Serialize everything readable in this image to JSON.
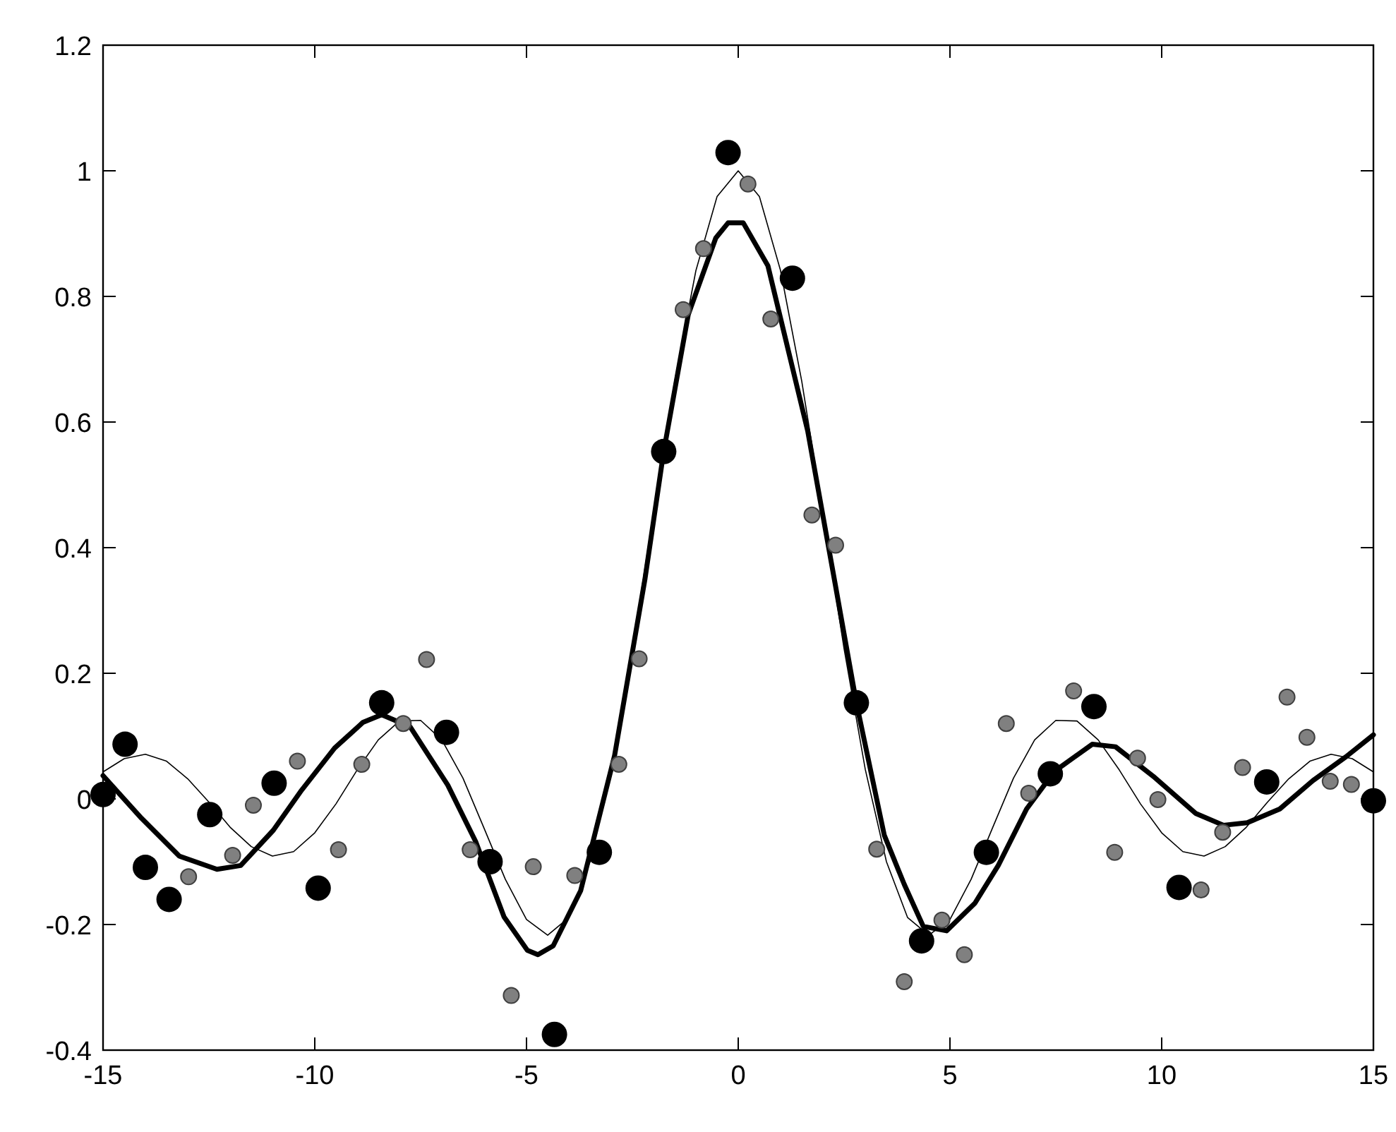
{
  "chart_data": {
    "type": "scatter",
    "xlim": [
      -15,
      15
    ],
    "ylim": [
      -0.4,
      1.2
    ],
    "xticks": [
      -15,
      -10,
      -5,
      0,
      5,
      10,
      15
    ],
    "yticks": [
      -0.4,
      -0.2,
      0,
      0.2,
      0.4,
      0.6,
      0.8,
      1,
      1.2
    ],
    "grid": false,
    "series": [
      {
        "type": "line",
        "color": "#000000",
        "marker": "none",
        "line_style": "solid",
        "x": [
          -15,
          -14.5,
          -14,
          -13.5,
          -13,
          -12.5,
          -12,
          -11.5,
          -11,
          -10.5,
          -10,
          -9.5,
          -9,
          -8.5,
          -8,
          -7.5,
          -7,
          -6.5,
          -6,
          -5.5,
          -5,
          -4.5,
          -4,
          -3.5,
          -3,
          -2.5,
          -2,
          -1.5,
          -1,
          -0.5,
          0,
          0.5,
          1,
          1.5,
          2,
          2.5,
          3,
          3.5,
          4,
          4.5,
          5,
          5.5,
          6,
          6.5,
          7,
          7.5,
          8,
          8.5,
          9,
          9.5,
          10,
          10.5,
          11,
          11.5,
          12,
          12.5,
          13,
          13.5,
          14,
          14.5,
          15
        ],
        "values": [
          0.043,
          0.064,
          0.071,
          0.06,
          0.032,
          -0.005,
          -0.045,
          -0.076,
          -0.091,
          -0.084,
          -0.054,
          -0.008,
          0.046,
          0.094,
          0.124,
          0.125,
          0.094,
          0.033,
          -0.047,
          -0.128,
          -0.192,
          -0.217,
          -0.189,
          -0.1,
          0.047,
          0.239,
          0.455,
          0.665,
          0.841,
          0.959,
          1,
          0.959,
          0.841,
          0.665,
          0.455,
          0.239,
          0.047,
          -0.1,
          -0.189,
          -0.217,
          -0.192,
          -0.128,
          -0.047,
          0.033,
          0.094,
          0.125,
          0.124,
          0.094,
          0.046,
          -0.008,
          -0.054,
          -0.084,
          -0.091,
          -0.076,
          -0.045,
          -0.005,
          0.032,
          0.06,
          0.071,
          0.064,
          0.043
        ]
      },
      {
        "type": "line",
        "color": "#000000",
        "marker": "none",
        "line_style": "solid",
        "x": [
          -15,
          -14.09,
          -13.2,
          -12.31,
          -11.75,
          -10.98,
          -10.31,
          -9.53,
          -8.86,
          -8.42,
          -7.75,
          -6.86,
          -6.2,
          -5.53,
          -4.98,
          -4.73,
          -4.37,
          -3.72,
          -2.92,
          -2.2,
          -1.76,
          -1.18,
          -0.53,
          -0.24,
          0.12,
          0.7,
          1.64,
          2.29,
          2.79,
          3.45,
          3.92,
          4.37,
          4.92,
          5.59,
          6.14,
          6.81,
          7.47,
          8.36,
          8.91,
          9.8,
          10.8,
          11.46,
          12.02,
          12.79,
          13.57,
          14.35,
          15
        ],
        "values": [
          0.037,
          -0.031,
          -0.091,
          -0.112,
          -0.106,
          -0.05,
          0.014,
          0.081,
          0.122,
          0.134,
          0.115,
          0.022,
          -0.068,
          -0.188,
          -0.241,
          -0.248,
          -0.234,
          -0.146,
          0.069,
          0.351,
          0.553,
          0.771,
          0.893,
          0.917,
          0.917,
          0.849,
          0.586,
          0.342,
          0.153,
          -0.058,
          -0.136,
          -0.203,
          -0.21,
          -0.166,
          -0.106,
          -0.016,
          0.044,
          0.087,
          0.083,
          0.036,
          -0.023,
          -0.042,
          -0.038,
          -0.016,
          0.029,
          0.067,
          0.102
        ]
      },
      {
        "color": "#808080",
        "marker": "circle",
        "x": [
          -12.98,
          -11.94,
          -11.45,
          -10.41,
          -9.44,
          -8.89,
          -7.91,
          -7.36,
          -6.33,
          -5.36,
          -4.84,
          -3.86,
          -2.82,
          -2.34,
          -1.3,
          -0.82,
          0.23,
          0.77,
          1.74,
          2.3,
          3.27,
          3.92,
          4.81,
          5.34,
          6.33,
          6.86,
          7.92,
          8.89,
          9.43,
          9.91,
          10.93,
          11.44,
          11.91,
          12.96,
          13.43,
          13.98,
          14.48
        ],
        "values": [
          -0.124,
          -0.09,
          -0.01,
          0.06,
          -0.081,
          0.055,
          0.12,
          0.222,
          -0.081,
          -0.313,
          -0.108,
          -0.122,
          0.055,
          0.223,
          0.779,
          0.876,
          0.979,
          0.764,
          0.452,
          0.404,
          -0.08,
          -0.291,
          -0.193,
          -0.248,
          0.12,
          0.009,
          0.172,
          -0.085,
          0.065,
          -0.001,
          -0.145,
          -0.053,
          0.05,
          0.162,
          0.098,
          0.028,
          0.023
        ]
      },
      {
        "color": "#000000",
        "marker": "circle",
        "x": [
          -15,
          -14.48,
          -14,
          -13.44,
          -12.48,
          -10.96,
          -9.92,
          -8.42,
          -6.89,
          -5.86,
          -4.34,
          -3.28,
          -1.76,
          -0.24,
          1.28,
          2.79,
          4.33,
          5.86,
          7.37,
          8.4,
          10.41,
          12.48,
          15
        ],
        "values": [
          0.007,
          0.087,
          -0.109,
          -0.16,
          -0.025,
          0.025,
          -0.142,
          0.153,
          0.106,
          -0.1,
          -0.375,
          -0.085,
          0.553,
          1.029,
          0.829,
          0.153,
          -0.226,
          -0.085,
          0.04,
          0.147,
          -0.141,
          0.027,
          -0.003
        ]
      }
    ]
  }
}
